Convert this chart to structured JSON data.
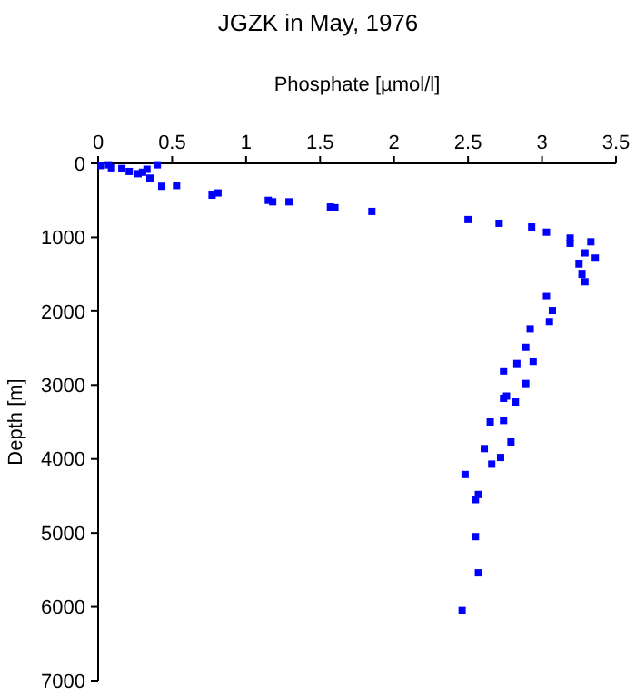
{
  "chart_data": {
    "type": "scatter",
    "title": "JGZK in May, 1976",
    "xlabel": "Phosphate [µmol/l]",
    "ylabel": "Depth [m]",
    "xlim": [
      0,
      3.5
    ],
    "xticks": [
      0,
      0.5,
      1,
      1.5,
      2,
      2.5,
      3,
      3.5
    ],
    "ylim": [
      7000,
      0
    ],
    "yticks": [
      0,
      1000,
      2000,
      3000,
      4000,
      5000,
      6000,
      7000
    ],
    "grid": false,
    "marker": "square",
    "series": [
      {
        "color": "#0000ff",
        "x": [
          0.02,
          0.07,
          0.09,
          0.16,
          0.21,
          0.27,
          0.3,
          0.33,
          0.35,
          0.4,
          0.43,
          0.53,
          0.77,
          0.81,
          1.15,
          1.18,
          1.29,
          1.57,
          1.6,
          1.85,
          2.5,
          2.71,
          2.93,
          3.03,
          3.19,
          3.19,
          3.33,
          3.29,
          3.36,
          3.25,
          3.27,
          3.29,
          3.03,
          3.07,
          3.05,
          2.92,
          2.89,
          2.94,
          2.83,
          2.74,
          2.89,
          2.76,
          2.74,
          2.82,
          2.65,
          2.74,
          2.79,
          2.61,
          2.72,
          2.66,
          2.48,
          2.57,
          2.55,
          2.55,
          2.57,
          2.46
        ],
        "values": [
          30,
          20,
          60,
          70,
          110,
          140,
          120,
          80,
          200,
          20,
          310,
          300,
          430,
          400,
          500,
          520,
          520,
          590,
          600,
          650,
          760,
          810,
          860,
          930,
          1010,
          1080,
          1060,
          1210,
          1280,
          1360,
          1500,
          1600,
          1800,
          1990,
          2140,
          2240,
          2490,
          2680,
          2710,
          2810,
          2980,
          3150,
          3180,
          3230,
          3500,
          3480,
          3770,
          3860,
          3980,
          4070,
          4210,
          4480,
          4550,
          5050,
          5540,
          6050
        ]
      }
    ]
  }
}
